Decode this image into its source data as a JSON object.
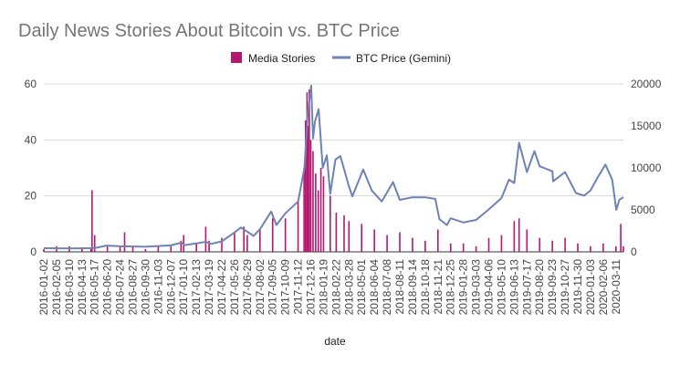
{
  "chart_data": {
    "type": "bar+line",
    "title": "Daily News Stories About Bitcoin vs. BTC Price",
    "xlabel": "date",
    "ylabel_left": "",
    "ylabel_right": "",
    "y_left_lim": [
      0,
      60
    ],
    "y_left_ticks": [
      0,
      20,
      40,
      60
    ],
    "y_right_lim": [
      0,
      20000
    ],
    "y_right_ticks": [
      0,
      5000,
      10000,
      15000,
      20000
    ],
    "grid": true,
    "legend_position": "top",
    "x_start": "2016-01-02",
    "x_end": "2020-03-31",
    "x_tick_labels": [
      "2016-01-02",
      "2016-02-05",
      "2016-03-10",
      "2016-04-13",
      "2016-05-17",
      "2016-06-20",
      "2016-07-24",
      "2016-08-27",
      "2016-09-30",
      "2016-11-03",
      "2016-12-07",
      "2017-01-10",
      "2017-02-13",
      "2017-03-19",
      "2017-04-22",
      "2017-05-26",
      "2017-06-29",
      "2017-08-02",
      "2017-09-05",
      "2017-10-09",
      "2017-11-12",
      "2017-12-16",
      "2018-01-19",
      "2018-02-22",
      "2018-03-28",
      "2018-05-01",
      "2018-06-04",
      "2018-07-08",
      "2018-08-11",
      "2018-09-14",
      "2018-10-18",
      "2018-11-21",
      "2018-12-25",
      "2019-01-28",
      "2019-03-03",
      "2019-04-06",
      "2019-05-10",
      "2019-06-13",
      "2019-07-17",
      "2019-08-20",
      "2019-09-23",
      "2019-10-27",
      "2019-11-30",
      "2020-01-03",
      "2020-02-06",
      "2020-03-11"
    ],
    "series": [
      {
        "name": "Media Stories",
        "axis": "left",
        "kind": "bar",
        "color": "#b5176f",
        "points": [
          [
            "2016-01-02",
            1
          ],
          [
            "2016-02-05",
            2
          ],
          [
            "2016-03-10",
            2
          ],
          [
            "2016-04-13",
            1
          ],
          [
            "2016-05-07",
            1
          ],
          [
            "2016-05-10",
            22
          ],
          [
            "2016-05-17",
            6
          ],
          [
            "2016-06-20",
            2
          ],
          [
            "2016-07-24",
            2
          ],
          [
            "2016-08-05",
            7
          ],
          [
            "2016-08-27",
            2
          ],
          [
            "2016-09-30",
            1
          ],
          [
            "2016-11-03",
            2
          ],
          [
            "2016-12-07",
            2
          ],
          [
            "2017-01-03",
            4
          ],
          [
            "2017-01-10",
            6
          ],
          [
            "2017-02-13",
            3
          ],
          [
            "2017-03-10",
            9
          ],
          [
            "2017-03-19",
            4
          ],
          [
            "2017-04-22",
            5
          ],
          [
            "2017-05-26",
            7
          ],
          [
            "2017-06-20",
            9
          ],
          [
            "2017-06-29",
            6
          ],
          [
            "2017-08-02",
            8
          ],
          [
            "2017-09-05",
            12
          ],
          [
            "2017-10-09",
            12
          ],
          [
            "2017-11-12",
            18
          ],
          [
            "2017-11-28",
            30
          ],
          [
            "2017-12-02",
            47
          ],
          [
            "2017-12-06",
            57
          ],
          [
            "2017-12-08",
            45
          ],
          [
            "2017-12-12",
            58
          ],
          [
            "2017-12-16",
            40
          ],
          [
            "2017-12-22",
            36
          ],
          [
            "2017-12-29",
            28
          ],
          [
            "2018-01-05",
            22
          ],
          [
            "2018-01-12",
            30
          ],
          [
            "2018-01-19",
            27
          ],
          [
            "2018-02-06",
            20
          ],
          [
            "2018-02-22",
            14
          ],
          [
            "2018-03-15",
            13
          ],
          [
            "2018-03-28",
            11
          ],
          [
            "2018-05-01",
            10
          ],
          [
            "2018-06-04",
            8
          ],
          [
            "2018-07-08",
            6
          ],
          [
            "2018-08-11",
            7
          ],
          [
            "2018-09-14",
            5
          ],
          [
            "2018-10-18",
            4
          ],
          [
            "2018-11-21",
            8
          ],
          [
            "2018-12-25",
            3
          ],
          [
            "2019-01-28",
            3
          ],
          [
            "2019-03-03",
            2
          ],
          [
            "2019-04-06",
            5
          ],
          [
            "2019-05-10",
            6
          ],
          [
            "2019-06-13",
            11
          ],
          [
            "2019-06-26",
            12
          ],
          [
            "2019-07-17",
            8
          ],
          [
            "2019-08-20",
            5
          ],
          [
            "2019-09-23",
            4
          ],
          [
            "2019-10-27",
            5
          ],
          [
            "2019-11-30",
            3
          ],
          [
            "2020-01-03",
            2
          ],
          [
            "2020-02-06",
            3
          ],
          [
            "2020-03-11",
            2
          ],
          [
            "2020-03-24",
            10
          ],
          [
            "2020-03-31",
            2
          ]
        ]
      },
      {
        "name": "BTC Price (Gemini)",
        "axis": "right",
        "kind": "line",
        "color": "#6e82b4",
        "points": [
          [
            "2016-01-02",
            430
          ],
          [
            "2016-03-10",
            415
          ],
          [
            "2016-05-17",
            450
          ],
          [
            "2016-06-18",
            750
          ],
          [
            "2016-07-24",
            660
          ],
          [
            "2016-09-30",
            610
          ],
          [
            "2016-11-03",
            700
          ],
          [
            "2016-12-07",
            770
          ],
          [
            "2017-01-04",
            1100
          ],
          [
            "2017-01-12",
            800
          ],
          [
            "2017-02-13",
            1000
          ],
          [
            "2017-03-10",
            1200
          ],
          [
            "2017-03-24",
            950
          ],
          [
            "2017-04-22",
            1250
          ],
          [
            "2017-05-26",
            2300
          ],
          [
            "2017-06-12",
            2900
          ],
          [
            "2017-07-16",
            1900
          ],
          [
            "2017-08-02",
            2700
          ],
          [
            "2017-09-01",
            4800
          ],
          [
            "2017-09-15",
            3200
          ],
          [
            "2017-10-09",
            4600
          ],
          [
            "2017-11-12",
            6000
          ],
          [
            "2017-11-29",
            10000
          ],
          [
            "2017-12-08",
            16500
          ],
          [
            "2017-12-17",
            19800
          ],
          [
            "2017-12-22",
            13500
          ],
          [
            "2017-12-27",
            15500
          ],
          [
            "2018-01-06",
            17000
          ],
          [
            "2018-01-17",
            10000
          ],
          [
            "2018-01-28",
            11500
          ],
          [
            "2018-02-06",
            6900
          ],
          [
            "2018-02-20",
            11000
          ],
          [
            "2018-03-05",
            11400
          ],
          [
            "2018-03-28",
            7800
          ],
          [
            "2018-04-06",
            6600
          ],
          [
            "2018-05-05",
            9800
          ],
          [
            "2018-05-28",
            7300
          ],
          [
            "2018-06-24",
            6000
          ],
          [
            "2018-07-24",
            8300
          ],
          [
            "2018-08-11",
            6200
          ],
          [
            "2018-09-14",
            6500
          ],
          [
            "2018-10-18",
            6500
          ],
          [
            "2018-11-14",
            6300
          ],
          [
            "2018-11-25",
            3900
          ],
          [
            "2018-12-15",
            3200
          ],
          [
            "2018-12-25",
            4000
          ],
          [
            "2019-01-28",
            3500
          ],
          [
            "2019-03-03",
            3800
          ],
          [
            "2019-04-02",
            4900
          ],
          [
            "2019-05-10",
            6400
          ],
          [
            "2019-05-30",
            8600
          ],
          [
            "2019-06-13",
            8200
          ],
          [
            "2019-06-26",
            13000
          ],
          [
            "2019-07-17",
            9500
          ],
          [
            "2019-08-06",
            12000
          ],
          [
            "2019-08-20",
            10200
          ],
          [
            "2019-09-23",
            9600
          ],
          [
            "2019-09-25",
            8400
          ],
          [
            "2019-10-27",
            9500
          ],
          [
            "2019-11-25",
            7000
          ],
          [
            "2019-12-17",
            6700
          ],
          [
            "2020-01-03",
            7300
          ],
          [
            "2020-01-20",
            8700
          ],
          [
            "2020-02-12",
            10400
          ],
          [
            "2020-03-01",
            8600
          ],
          [
            "2020-03-12",
            5000
          ],
          [
            "2020-03-20",
            6200
          ],
          [
            "2020-03-31",
            6500
          ]
        ]
      }
    ]
  }
}
